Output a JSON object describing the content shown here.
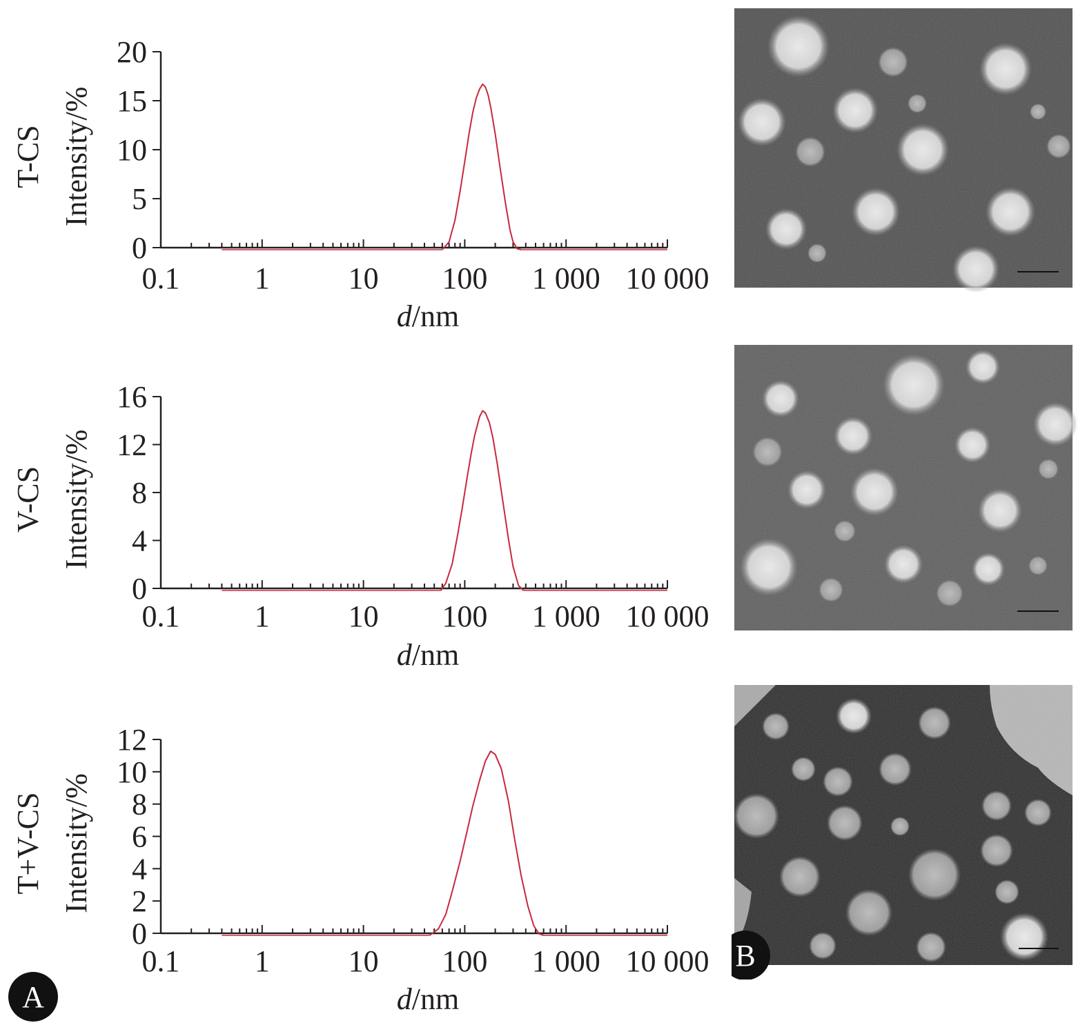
{
  "panels": {
    "A": {
      "label": "A"
    },
    "B": {
      "label": "B"
    }
  },
  "colors": {
    "curve": "#c8283c",
    "axis": "#231f20",
    "tem_background": "#4a4a4a",
    "tem_particle": "#e6e6e6",
    "badge": "#111111"
  },
  "chart_data": [
    {
      "type": "line",
      "sample": "T-CS",
      "xlabel_italic": "d",
      "xlabel_rest": "/nm",
      "ylabel": "Intensity/%",
      "x_scale": "log",
      "xlim": [
        0.1,
        10000
      ],
      "x_ticks": [
        0.1,
        1,
        10,
        100,
        1000,
        10000
      ],
      "x_tick_labels": [
        "0.1",
        "1",
        "10",
        "100",
        "1 000",
        "10 000"
      ],
      "ylim": [
        0,
        20
      ],
      "y_ticks": [
        0,
        5,
        10,
        15,
        20
      ],
      "y_tick_labels": [
        "0",
        "5",
        "10",
        "15",
        "20"
      ],
      "baseline_x": [
        0.4,
        10000
      ],
      "series": [
        {
          "name": "T-CS",
          "x": [
            60,
            70,
            80,
            90,
            100,
            110,
            120,
            130,
            140,
            150,
            160,
            170,
            180,
            200,
            220,
            250,
            280,
            300,
            330,
            360
          ],
          "y": [
            0,
            0.8,
            3.0,
            6.0,
            9.0,
            11.8,
            14.0,
            15.5,
            16.4,
            16.9,
            16.6,
            15.8,
            14.6,
            11.8,
            8.8,
            5.0,
            2.0,
            0.8,
            0.1,
            0
          ]
        }
      ]
    },
    {
      "type": "line",
      "sample": "V-CS",
      "xlabel_italic": "d",
      "xlabel_rest": "/nm",
      "ylabel": "Intensity/%",
      "x_scale": "log",
      "xlim": [
        0.1,
        10000
      ],
      "x_ticks": [
        0.1,
        1,
        10,
        100,
        1000,
        10000
      ],
      "x_tick_labels": [
        "0.1",
        "1",
        "10",
        "100",
        "1 000",
        "10 000"
      ],
      "ylim": [
        0,
        16
      ],
      "y_ticks": [
        0,
        4,
        8,
        12,
        16
      ],
      "y_tick_labels": [
        "0",
        "4",
        "8",
        "12",
        "16"
      ],
      "baseline_x": [
        0.4,
        10000
      ],
      "series": [
        {
          "name": "V-CS",
          "x": [
            58,
            65,
            75,
            85,
            95,
            105,
            115,
            125,
            140,
            150,
            160,
            175,
            190,
            210,
            240,
            270,
            300,
            340,
            380
          ],
          "y": [
            0,
            0.6,
            2.2,
            4.6,
            7.0,
            9.3,
            11.3,
            12.9,
            14.5,
            15.0,
            14.8,
            14.0,
            12.7,
            10.5,
            7.2,
            4.3,
            2.0,
            0.4,
            0
          ]
        }
      ]
    },
    {
      "type": "line",
      "sample": "T+V-CS",
      "xlabel_italic": "d",
      "xlabel_rest": "/nm",
      "ylabel": "Intensity/%",
      "x_scale": "log",
      "xlim": [
        0.1,
        10000
      ],
      "x_ticks": [
        0.1,
        1,
        10,
        100,
        1000,
        10000
      ],
      "x_tick_labels": [
        "0.1",
        "1",
        "10",
        "100",
        "1 000",
        "10 000"
      ],
      "ylim": [
        0,
        12
      ],
      "y_ticks": [
        0,
        2,
        4,
        6,
        8,
        10,
        12
      ],
      "y_tick_labels": [
        "0",
        "2",
        "4",
        "6",
        "8",
        "10",
        "12"
      ],
      "baseline_x": [
        0.4,
        10000
      ],
      "series": [
        {
          "name": "T+V-CS",
          "x": [
            45,
            55,
            65,
            75,
            90,
            105,
            120,
            140,
            160,
            180,
            200,
            230,
            270,
            310,
            360,
            420,
            480,
            540,
            600
          ],
          "y": [
            0,
            0.4,
            1.3,
            2.7,
            4.6,
            6.4,
            8.0,
            9.6,
            10.8,
            11.4,
            11.2,
            10.3,
            8.3,
            6.0,
            3.7,
            1.8,
            0.6,
            0.1,
            0
          ]
        }
      ]
    }
  ]
}
